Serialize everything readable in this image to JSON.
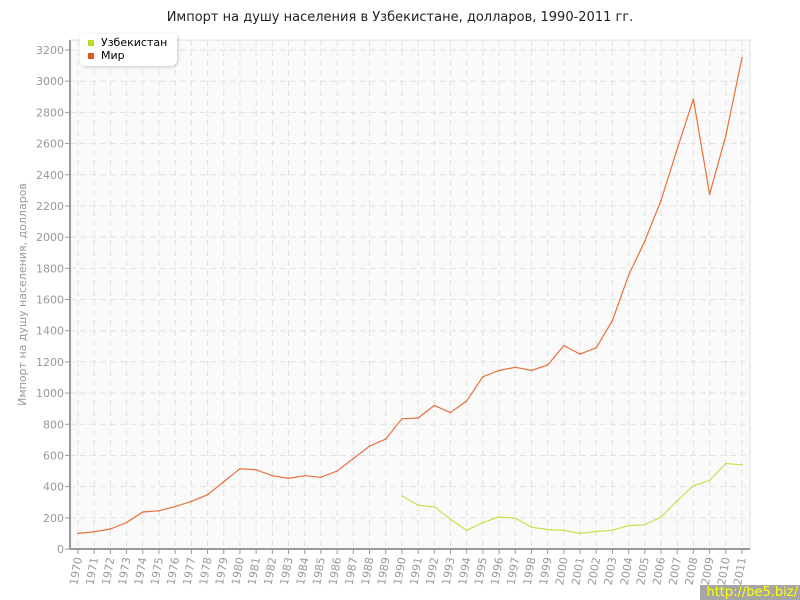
{
  "chart_data": {
    "type": "line",
    "title": "Импорт на душу населения в Узбекистане, долларов, 1990-2011 гг.",
    "xlabel": "",
    "ylabel": "Импорт на душу населения, долларов",
    "ylim": [
      0,
      3200
    ],
    "yticks": [
      0,
      200,
      400,
      600,
      800,
      1000,
      1200,
      1400,
      1600,
      1800,
      2000,
      2200,
      2400,
      2600,
      2800,
      3000,
      3200
    ],
    "grid": true,
    "legend": "top-left",
    "x": [
      1970,
      1971,
      1972,
      1973,
      1974,
      1975,
      1976,
      1977,
      1978,
      1979,
      1980,
      1981,
      1982,
      1983,
      1984,
      1985,
      1986,
      1987,
      1988,
      1989,
      1990,
      1991,
      1992,
      1993,
      1994,
      1995,
      1996,
      1997,
      1998,
      1999,
      2000,
      2001,
      2002,
      2003,
      2004,
      2005,
      2006,
      2007,
      2008,
      2009,
      2010,
      2011
    ],
    "series": [
      {
        "name": "Узбекистан",
        "color": "#c8e04c",
        "values": [
          null,
          null,
          null,
          null,
          null,
          null,
          null,
          null,
          null,
          null,
          null,
          null,
          null,
          null,
          null,
          null,
          null,
          null,
          null,
          null,
          340,
          280,
          270,
          190,
          120,
          170,
          205,
          198,
          140,
          125,
          120,
          100,
          112,
          120,
          150,
          155,
          205,
          310,
          405,
          440,
          548,
          540
        ]
      },
      {
        "name": "Мир",
        "color": "#e8703a",
        "values": [
          100,
          110,
          128,
          170,
          237,
          245,
          272,
          305,
          348,
          432,
          515,
          508,
          470,
          453,
          470,
          460,
          500,
          580,
          660,
          705,
          835,
          840,
          920,
          875,
          950,
          1105,
          1145,
          1165,
          1145,
          1180,
          1305,
          1250,
          1290,
          1465,
          1755,
          1975,
          2235,
          2565,
          2885,
          2275,
          2650,
          3150
        ]
      }
    ]
  },
  "legend_colors": {
    "Узбекистан": "#b5dc2a",
    "Мир": "#e0582a"
  },
  "watermark": "http://be5.biz/"
}
